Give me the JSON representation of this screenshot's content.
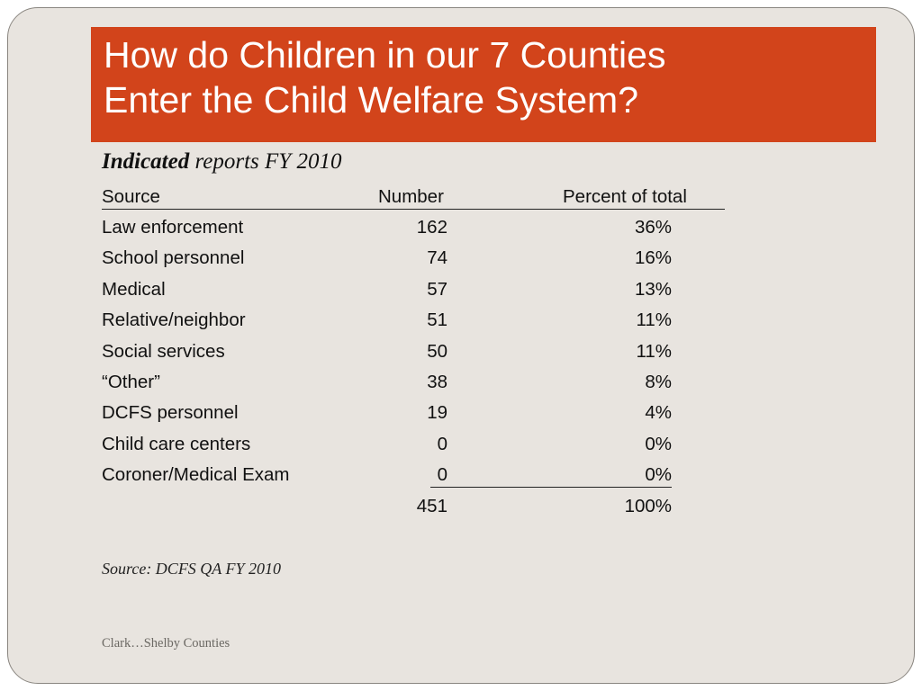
{
  "title": {
    "line1": "How do Children in our 7 Counties",
    "line2": "Enter the Child Welfare System?"
  },
  "subtitle": {
    "bold": "Indicated",
    "rest": " reports FY 2010"
  },
  "table": {
    "headers": {
      "source": "Source",
      "number": "Number",
      "percent": "Percent of total"
    },
    "rows": [
      {
        "source": "Law enforcement",
        "number": "162",
        "percent": "36%"
      },
      {
        "source": "School personnel",
        "number": "74",
        "percent": "16%"
      },
      {
        "source": "Medical",
        "number": "57",
        "percent": "13%"
      },
      {
        "source": "Relative/neighbor",
        "number": "51",
        "percent": "11%"
      },
      {
        "source": "Social services",
        "number": "50",
        "percent": "11%"
      },
      {
        "source": "“Other”",
        "number": "38",
        "percent": "8%"
      },
      {
        "source": "DCFS personnel",
        "number": "19",
        "percent": "4%"
      },
      {
        "source": "Child care centers",
        "number": "0",
        "percent": "0%"
      },
      {
        "source": "Coroner/Medical Exam",
        "number": "0",
        "percent": "0%"
      }
    ],
    "total": {
      "number": "451",
      "percent": "100%"
    }
  },
  "source_note": "Source: DCFS QA FY 2010",
  "footer": "Clark…Shelby Counties",
  "colors": {
    "title_bar": "#d2441b",
    "slide_background": "#e8e4df"
  }
}
